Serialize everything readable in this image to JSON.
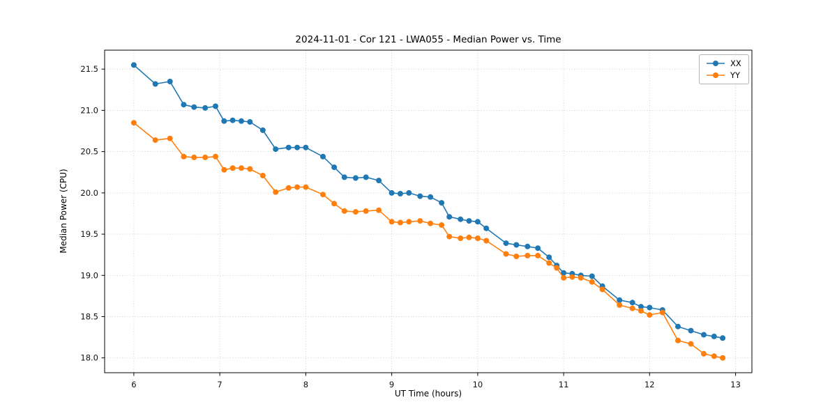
{
  "chart_data": {
    "type": "line",
    "title": "2024-11-01 - Cor 121 - LWA055 - Median Power vs. Time",
    "xlabel": "UT Time (hours)",
    "ylabel": "Median Power (CPU)",
    "xlim": [
      5.66,
      13.19
    ],
    "ylim": [
      17.82,
      21.73
    ],
    "xticks": [
      6,
      7,
      8,
      9,
      10,
      11,
      12,
      13
    ],
    "yticks": [
      18.0,
      18.5,
      19.0,
      19.5,
      20.0,
      20.5,
      21.0,
      21.5
    ],
    "grid": true,
    "legend_position": "upper right",
    "x": [
      6.0,
      6.25,
      6.42,
      6.58,
      6.7,
      6.83,
      6.95,
      7.05,
      7.15,
      7.25,
      7.35,
      7.5,
      7.65,
      7.8,
      7.9,
      8.0,
      8.2,
      8.33,
      8.45,
      8.58,
      8.7,
      8.85,
      9.0,
      9.1,
      9.2,
      9.33,
      9.45,
      9.58,
      9.67,
      9.8,
      9.9,
      10.0,
      10.1,
      10.33,
      10.45,
      10.58,
      10.7,
      10.83,
      10.92,
      11.0,
      11.1,
      11.2,
      11.33,
      11.45,
      11.65,
      11.8,
      11.9,
      12.0,
      12.15,
      12.33,
      12.48,
      12.63,
      12.75,
      12.85
    ],
    "series": [
      {
        "name": "XX",
        "color": "#1f77b4",
        "values": [
          21.55,
          21.32,
          21.35,
          21.07,
          21.04,
          21.03,
          21.05,
          20.87,
          20.88,
          20.87,
          20.86,
          20.76,
          20.53,
          20.55,
          20.55,
          20.55,
          20.44,
          20.31,
          20.19,
          20.18,
          20.19,
          20.15,
          20.0,
          19.99,
          20.0,
          19.96,
          19.95,
          19.88,
          19.71,
          19.68,
          19.66,
          19.65,
          19.57,
          19.39,
          19.37,
          19.35,
          19.33,
          19.22,
          19.12,
          19.03,
          19.02,
          19.0,
          18.99,
          18.87,
          18.7,
          18.67,
          18.62,
          18.61,
          18.58,
          18.38,
          18.33,
          18.28,
          18.26,
          18.24
        ]
      },
      {
        "name": "YY",
        "color": "#ff7f0e",
        "values": [
          20.85,
          20.64,
          20.66,
          20.44,
          20.43,
          20.43,
          20.44,
          20.28,
          20.3,
          20.3,
          20.29,
          20.21,
          20.01,
          20.06,
          20.07,
          20.07,
          19.98,
          19.87,
          19.78,
          19.77,
          19.78,
          19.79,
          19.65,
          19.64,
          19.65,
          19.66,
          19.63,
          19.61,
          19.47,
          19.45,
          19.46,
          19.45,
          19.42,
          19.26,
          19.23,
          19.24,
          19.24,
          19.15,
          19.09,
          18.97,
          18.98,
          18.97,
          18.92,
          18.83,
          18.64,
          18.6,
          18.57,
          18.52,
          18.55,
          18.21,
          18.17,
          18.05,
          18.02,
          18.0
        ]
      }
    ]
  }
}
